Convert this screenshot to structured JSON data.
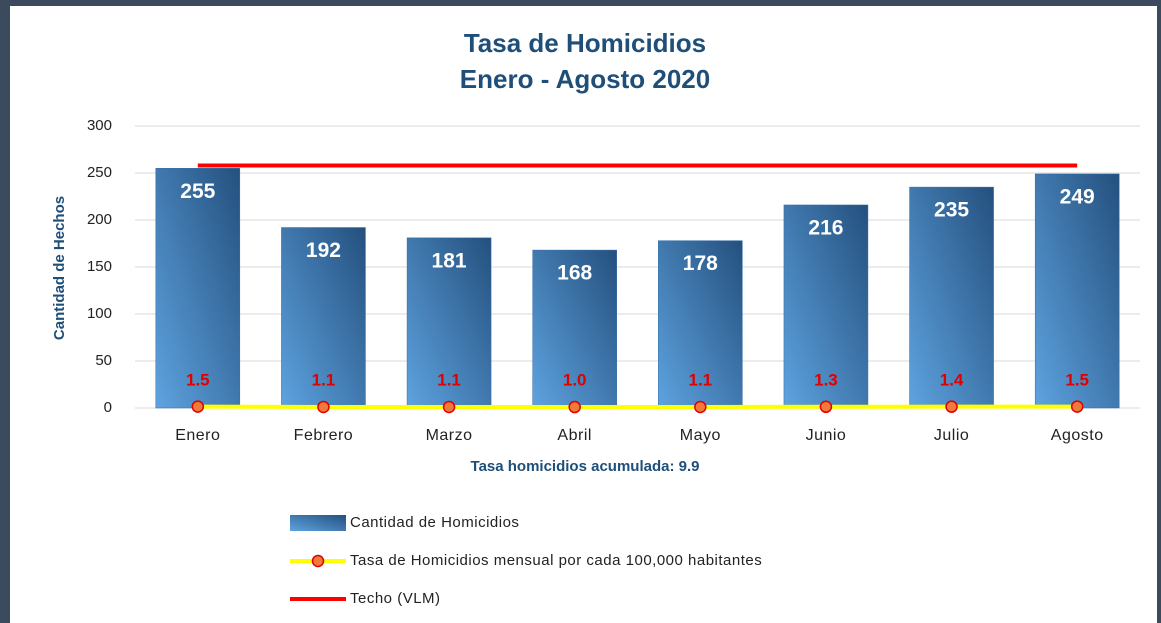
{
  "chart_data": {
    "type": "bar",
    "title": [
      "Tasa de Homicidios",
      "Enero - Agosto 2020"
    ],
    "y_label": "Cantidad de Hechos",
    "annotation": "Tasa homicidios acumulada:  9.9",
    "categories": [
      "Enero",
      "Febrero",
      "Marzo",
      "Abril",
      "Mayo",
      "Junio",
      "Julio",
      "Agosto"
    ],
    "series": [
      {
        "name": "Cantidad de Homicidios",
        "type": "bar",
        "color": "#2e6aa6",
        "values": [
          255,
          192,
          181,
          168,
          178,
          216,
          235,
          249
        ]
      },
      {
        "name": "Tasa de Homicidios mensual por cada 100,000 habitantes",
        "type": "line",
        "color": "#ffff00",
        "marker_color": "#f07a3a",
        "values": [
          1.5,
          1.1,
          1.1,
          1.0,
          1.1,
          1.3,
          1.4,
          1.5
        ],
        "value_labels": [
          "1.5",
          "1.1",
          "1.1",
          "1.0",
          "1.1",
          "1.3",
          "1.4",
          "1.5"
        ]
      },
      {
        "name": "Techo (VLM)",
        "type": "line",
        "color": "#ff0000",
        "values": [
          258,
          258,
          258,
          258,
          258,
          258,
          258,
          258
        ]
      }
    ],
    "ylim": [
      0,
      300
    ],
    "yticks": [
      0,
      50,
      100,
      150,
      200,
      250,
      300
    ],
    "grid": true
  }
}
